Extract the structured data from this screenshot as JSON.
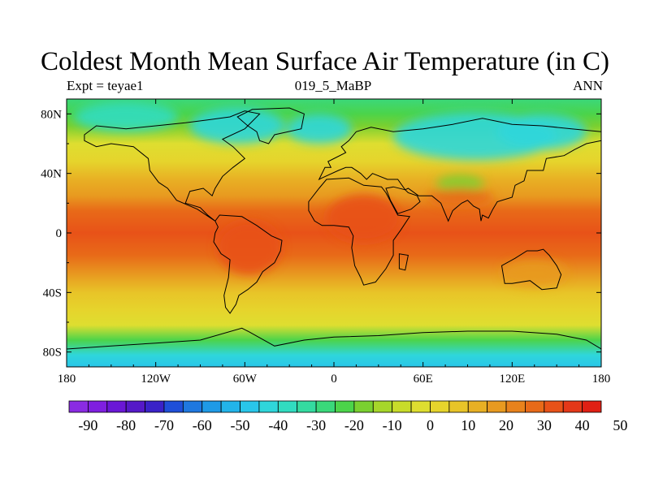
{
  "chart_data": {
    "type": "heatmap",
    "title": "Coldest Month Mean Surface Air Temperature (in C)",
    "left_label": "Expt = teyae1",
    "center_label": "019_5_MaBP",
    "right_label": "ANN",
    "x_ticks": [
      "180",
      "120W",
      "60W",
      "0",
      "60E",
      "120E",
      "180"
    ],
    "x_tick_values": [
      -180,
      -120,
      -60,
      0,
      60,
      120,
      180
    ],
    "y_ticks": [
      "80N",
      "40N",
      "0",
      "40S",
      "80S"
    ],
    "y_tick_values": [
      80,
      40,
      0,
      -40,
      -80
    ],
    "xlim": [
      -180,
      180
    ],
    "ylim": [
      -90,
      90
    ],
    "colorbar_labels": [
      "-90",
      "-80",
      "-70",
      "-60",
      "-50",
      "-40",
      "-30",
      "-20",
      "-10",
      "0",
      "10",
      "20",
      "30",
      "40",
      "50"
    ],
    "colorbar_colors": [
      "#8a2be2",
      "#7f1fe0",
      "#6a17d6",
      "#5519c8",
      "#3a22c8",
      "#1f4fd8",
      "#1f78e0",
      "#1f9ae6",
      "#22b4ea",
      "#29c6ea",
      "#2fd6da",
      "#31dcc0",
      "#34dba0",
      "#3ad87a",
      "#4cd44a",
      "#7ad030",
      "#a6d62a",
      "#c8dc2a",
      "#dede30",
      "#e6d42c",
      "#e8c428",
      "#e8b024",
      "#e89a20",
      "#e8821c",
      "#e86a18",
      "#e85218",
      "#e43818",
      "#e02014"
    ],
    "bands": [
      {
        "lat": 90,
        "value": -22
      },
      {
        "lat": 80,
        "value": -18
      },
      {
        "lat": 72,
        "value": -10
      },
      {
        "lat": 60,
        "value": 3
      },
      {
        "lat": 48,
        "value": 12
      },
      {
        "lat": 36,
        "value": 18
      },
      {
        "lat": 25,
        "value": 26
      },
      {
        "lat": 15,
        "value": 36
      },
      {
        "lat": 0,
        "value": 40
      },
      {
        "lat": -15,
        "value": 36
      },
      {
        "lat": -28,
        "value": 24
      },
      {
        "lat": -40,
        "value": 17
      },
      {
        "lat": -52,
        "value": 12
      },
      {
        "lat": -62,
        "value": 2
      },
      {
        "lat": -72,
        "value": -20
      },
      {
        "lat": -82,
        "value": -40
      },
      {
        "lat": -90,
        "value": -45
      }
    ],
    "anomalies": [
      {
        "lon": -65,
        "lat": 72,
        "rlon": 32,
        "rlat": 12,
        "value": -40
      },
      {
        "lon": -10,
        "lat": 70,
        "rlon": 22,
        "rlat": 10,
        "value": -38
      },
      {
        "lon": 95,
        "lat": 65,
        "rlon": 55,
        "rlat": 16,
        "value": -38
      },
      {
        "lon": 140,
        "lat": 68,
        "rlon": 30,
        "rlat": 12,
        "value": -40
      },
      {
        "lon": -140,
        "lat": 78,
        "rlon": 35,
        "rlat": 10,
        "value": -33
      },
      {
        "lon": -57,
        "lat": -10,
        "rlon": 22,
        "rlat": 18,
        "value": 44
      },
      {
        "lon": 20,
        "lat": 10,
        "rlon": 25,
        "rlat": 16,
        "value": 43
      },
      {
        "lon": 85,
        "lat": 33,
        "rlon": 16,
        "rlat": 6,
        "value": -12
      },
      {
        "lon": 85,
        "lat": 24,
        "rlon": 22,
        "rlat": 6,
        "value": 36
      },
      {
        "lon": 135,
        "lat": -27,
        "rlon": 22,
        "rlat": 9,
        "value": 28
      }
    ],
    "continents": [
      {
        "name": "North America",
        "path": [
          [
            -168,
            66
          ],
          [
            -160,
            72
          ],
          [
            -140,
            70
          ],
          [
            -120,
            72
          ],
          [
            -100,
            74
          ],
          [
            -85,
            76
          ],
          [
            -70,
            78
          ],
          [
            -60,
            82
          ],
          [
            -50,
            80
          ],
          [
            -60,
            70
          ],
          [
            -75,
            63
          ],
          [
            -68,
            58
          ],
          [
            -60,
            50
          ],
          [
            -68,
            44
          ],
          [
            -75,
            38
          ],
          [
            -80,
            30
          ],
          [
            -82,
            25
          ],
          [
            -88,
            30
          ],
          [
            -97,
            28
          ],
          [
            -100,
            20
          ],
          [
            -90,
            17
          ],
          [
            -85,
            12
          ],
          [
            -80,
            8
          ],
          [
            -83,
            10
          ],
          [
            -92,
            16
          ],
          [
            -106,
            22
          ],
          [
            -112,
            30
          ],
          [
            -118,
            34
          ],
          [
            -124,
            42
          ],
          [
            -125,
            50
          ],
          [
            -135,
            58
          ],
          [
            -150,
            60
          ],
          [
            -160,
            58
          ],
          [
            -168,
            62
          ]
        ]
      },
      {
        "name": "Greenland",
        "path": [
          [
            -50,
            62
          ],
          [
            -44,
            60
          ],
          [
            -40,
            66
          ],
          [
            -22,
            70
          ],
          [
            -20,
            80
          ],
          [
            -30,
            84
          ],
          [
            -55,
            83
          ],
          [
            -65,
            78
          ],
          [
            -58,
            72
          ],
          [
            -52,
            68
          ]
        ]
      },
      {
        "name": "South America",
        "path": [
          [
            -80,
            8
          ],
          [
            -77,
            12
          ],
          [
            -62,
            11
          ],
          [
            -52,
            5
          ],
          [
            -42,
            -2
          ],
          [
            -35,
            -5
          ],
          [
            -36,
            -12
          ],
          [
            -40,
            -20
          ],
          [
            -48,
            -26
          ],
          [
            -52,
            -33
          ],
          [
            -58,
            -38
          ],
          [
            -64,
            -42
          ],
          [
            -66,
            -48
          ],
          [
            -70,
            -54
          ],
          [
            -73,
            -50
          ],
          [
            -74,
            -42
          ],
          [
            -71,
            -30
          ],
          [
            -70,
            -18
          ],
          [
            -76,
            -14
          ],
          [
            -81,
            -6
          ],
          [
            -80,
            0
          ],
          [
            -78,
            4
          ]
        ]
      },
      {
        "name": "Eurasia",
        "path": [
          [
            -10,
            36
          ],
          [
            -6,
            44
          ],
          [
            -2,
            44
          ],
          [
            -4,
            48
          ],
          [
            2,
            51
          ],
          [
            8,
            54
          ],
          [
            5,
            58
          ],
          [
            10,
            62
          ],
          [
            15,
            68
          ],
          [
            25,
            71
          ],
          [
            40,
            68
          ],
          [
            60,
            70
          ],
          [
            80,
            73
          ],
          [
            100,
            77
          ],
          [
            120,
            73
          ],
          [
            140,
            72
          ],
          [
            160,
            70
          ],
          [
            180,
            68
          ],
          [
            180,
            62
          ],
          [
            170,
            60
          ],
          [
            162,
            56
          ],
          [
            155,
            52
          ],
          [
            143,
            50
          ],
          [
            141,
            42
          ],
          [
            130,
            42
          ],
          [
            128,
            35
          ],
          [
            122,
            32
          ],
          [
            120,
            24
          ],
          [
            110,
            21
          ],
          [
            107,
            16
          ],
          [
            104,
            10
          ],
          [
            100,
            12
          ],
          [
            99,
            8
          ],
          [
            98,
            16
          ],
          [
            94,
            18
          ],
          [
            90,
            22
          ],
          [
            86,
            20
          ],
          [
            80,
            15
          ],
          [
            77,
            8
          ],
          [
            72,
            20
          ],
          [
            66,
            25
          ],
          [
            57,
            25
          ],
          [
            50,
            30
          ],
          [
            48,
            29
          ],
          [
            43,
            36
          ],
          [
            36,
            36
          ],
          [
            26,
            40
          ],
          [
            22,
            36
          ],
          [
            18,
            40
          ],
          [
            12,
            44
          ],
          [
            8,
            44
          ],
          [
            3,
            42
          ],
          [
            -8,
            37
          ]
        ]
      },
      {
        "name": "Arabia",
        "path": [
          [
            35,
            30
          ],
          [
            38,
            22
          ],
          [
            43,
            13
          ],
          [
            52,
            16
          ],
          [
            58,
            21
          ],
          [
            56,
            25
          ],
          [
            50,
            27
          ],
          [
            48,
            29
          ],
          [
            40,
            31
          ]
        ]
      },
      {
        "name": "Africa",
        "path": [
          [
            -17,
            15
          ],
          [
            -17,
            21
          ],
          [
            -10,
            30
          ],
          [
            -5,
            36
          ],
          [
            10,
            37
          ],
          [
            20,
            32
          ],
          [
            32,
            31
          ],
          [
            35,
            27
          ],
          [
            43,
            12
          ],
          [
            51,
            11
          ],
          [
            45,
            2
          ],
          [
            40,
            -5
          ],
          [
            40,
            -15
          ],
          [
            35,
            -24
          ],
          [
            28,
            -33
          ],
          [
            20,
            -35
          ],
          [
            18,
            -30
          ],
          [
            14,
            -22
          ],
          [
            12,
            -10
          ],
          [
            13,
            -2
          ],
          [
            10,
            4
          ],
          [
            0,
            5
          ],
          [
            -8,
            5
          ],
          [
            -13,
            8
          ]
        ]
      },
      {
        "name": "Madagascar",
        "path": [
          [
            44,
            -14
          ],
          [
            50,
            -15
          ],
          [
            48,
            -25
          ],
          [
            44,
            -24
          ]
        ]
      },
      {
        "name": "Australia",
        "path": [
          [
            113,
            -22
          ],
          [
            122,
            -17
          ],
          [
            130,
            -12
          ],
          [
            137,
            -12
          ],
          [
            141,
            -11
          ],
          [
            145,
            -15
          ],
          [
            150,
            -22
          ],
          [
            153,
            -28
          ],
          [
            150,
            -37
          ],
          [
            140,
            -38
          ],
          [
            132,
            -32
          ],
          [
            120,
            -34
          ],
          [
            115,
            -34
          ]
        ]
      },
      {
        "name": "Antarctica",
        "path": [
          [
            -180,
            -78
          ],
          [
            -150,
            -76
          ],
          [
            -120,
            -74
          ],
          [
            -90,
            -72
          ],
          [
            -62,
            -64
          ],
          [
            -58,
            -66
          ],
          [
            -40,
            -76
          ],
          [
            -20,
            -72
          ],
          [
            0,
            -70
          ],
          [
            30,
            -69
          ],
          [
            60,
            -67
          ],
          [
            90,
            -66
          ],
          [
            120,
            -66
          ],
          [
            150,
            -68
          ],
          [
            170,
            -72
          ],
          [
            180,
            -78
          ],
          [
            180,
            -90
          ],
          [
            -180,
            -90
          ]
        ]
      }
    ]
  }
}
